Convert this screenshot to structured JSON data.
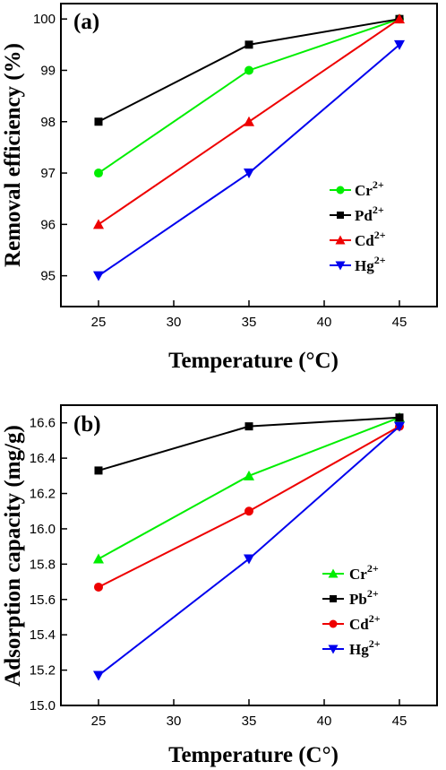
{
  "chart_data": [
    {
      "type": "line",
      "panel_label": "(a)",
      "xlabel": "Temperature (°C)",
      "ylabel": "Removal efficiency (%)",
      "x": [
        25,
        35,
        45
      ],
      "xticks": [
        25,
        30,
        35,
        40,
        45
      ],
      "xlim": [
        22.5,
        47.5
      ],
      "yticks": [
        95,
        96,
        97,
        98,
        99,
        100
      ],
      "ylim": [
        94.4,
        100.3
      ],
      "grid": false,
      "legend": "center-right",
      "series": [
        {
          "name": "Cr",
          "sup": "2+",
          "color": "#00ee00",
          "marker": "circle",
          "values": [
            97,
            99,
            100
          ]
        },
        {
          "name": "Pd",
          "sup": "2+",
          "color": "#000000",
          "marker": "square",
          "values": [
            98,
            99.5,
            100
          ]
        },
        {
          "name": "Cd",
          "sup": "2+",
          "color": "#ee0000",
          "marker": "triangle-up",
          "values": [
            96,
            98,
            100
          ]
        },
        {
          "name": "Hg",
          "sup": "2+",
          "color": "#0000ee",
          "marker": "triangle-down",
          "values": [
            95,
            97,
            99.5
          ]
        }
      ]
    },
    {
      "type": "line",
      "panel_label": "(b)",
      "xlabel": "Temperature (C°)",
      "ylabel": "Adsorption capacity (mg/g)",
      "x": [
        25,
        35,
        45
      ],
      "xticks": [
        25,
        30,
        35,
        40,
        45
      ],
      "xlim": [
        22.5,
        47.5
      ],
      "yticks": [
        15.0,
        15.2,
        15.4,
        15.6,
        15.8,
        16.0,
        16.2,
        16.4,
        16.6
      ],
      "ylim": [
        15.0,
        16.7
      ],
      "grid": false,
      "legend": "lower-right",
      "series": [
        {
          "name": "Cr",
          "sup": "2+",
          "color": "#00ee00",
          "marker": "triangle-up",
          "values": [
            15.83,
            16.3,
            16.63
          ]
        },
        {
          "name": "Pb",
          "sup": "2+",
          "color": "#000000",
          "marker": "square",
          "values": [
            16.33,
            16.58,
            16.63
          ]
        },
        {
          "name": "Cd",
          "sup": "2+",
          "color": "#ee0000",
          "marker": "circle",
          "values": [
            15.67,
            16.1,
            16.58
          ]
        },
        {
          "name": "Hg",
          "sup": "2+",
          "color": "#0000ee",
          "marker": "triangle-down",
          "values": [
            15.17,
            15.83,
            16.58
          ]
        }
      ]
    }
  ]
}
